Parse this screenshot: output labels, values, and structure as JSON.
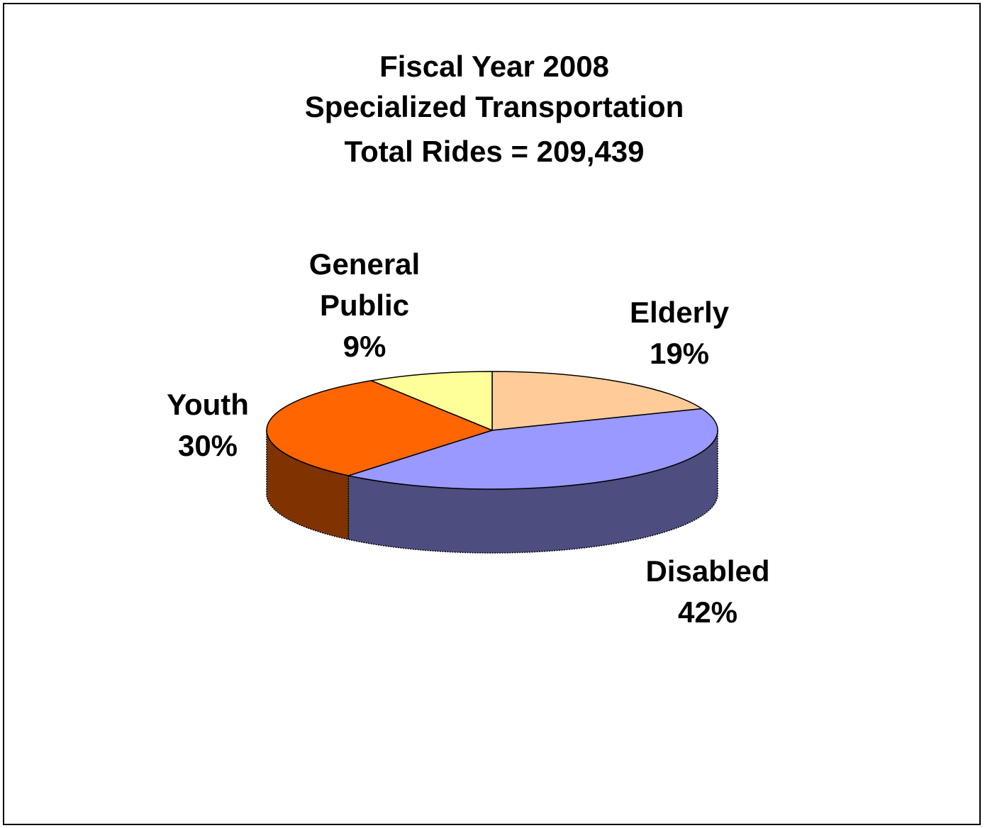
{
  "chart_data": {
    "type": "pie",
    "title_lines": [
      "Fiscal Year 2008",
      "Specialized Transportation",
      "Total Rides = 209,439"
    ],
    "slices": [
      {
        "name": "Elderly",
        "label_lines": [
          "Elderly",
          "19%"
        ],
        "value": 19,
        "top_color": "#FFCC99",
        "side_color": "#B38F6B"
      },
      {
        "name": "Disabled",
        "label_lines": [
          "Disabled",
          "42%"
        ],
        "value": 42,
        "top_color": "#9999FF",
        "side_color": "#4D4D80"
      },
      {
        "name": "Youth",
        "label_lines": [
          "Youth",
          "30%"
        ],
        "value": 30,
        "top_color": "#FF6600",
        "side_color": "#803300"
      },
      {
        "name": "General Public",
        "label_lines": [
          "General",
          "Public",
          "9%"
        ],
        "value": 9,
        "top_color": "#FFFF99",
        "side_color": "#B3B36B"
      }
    ]
  }
}
